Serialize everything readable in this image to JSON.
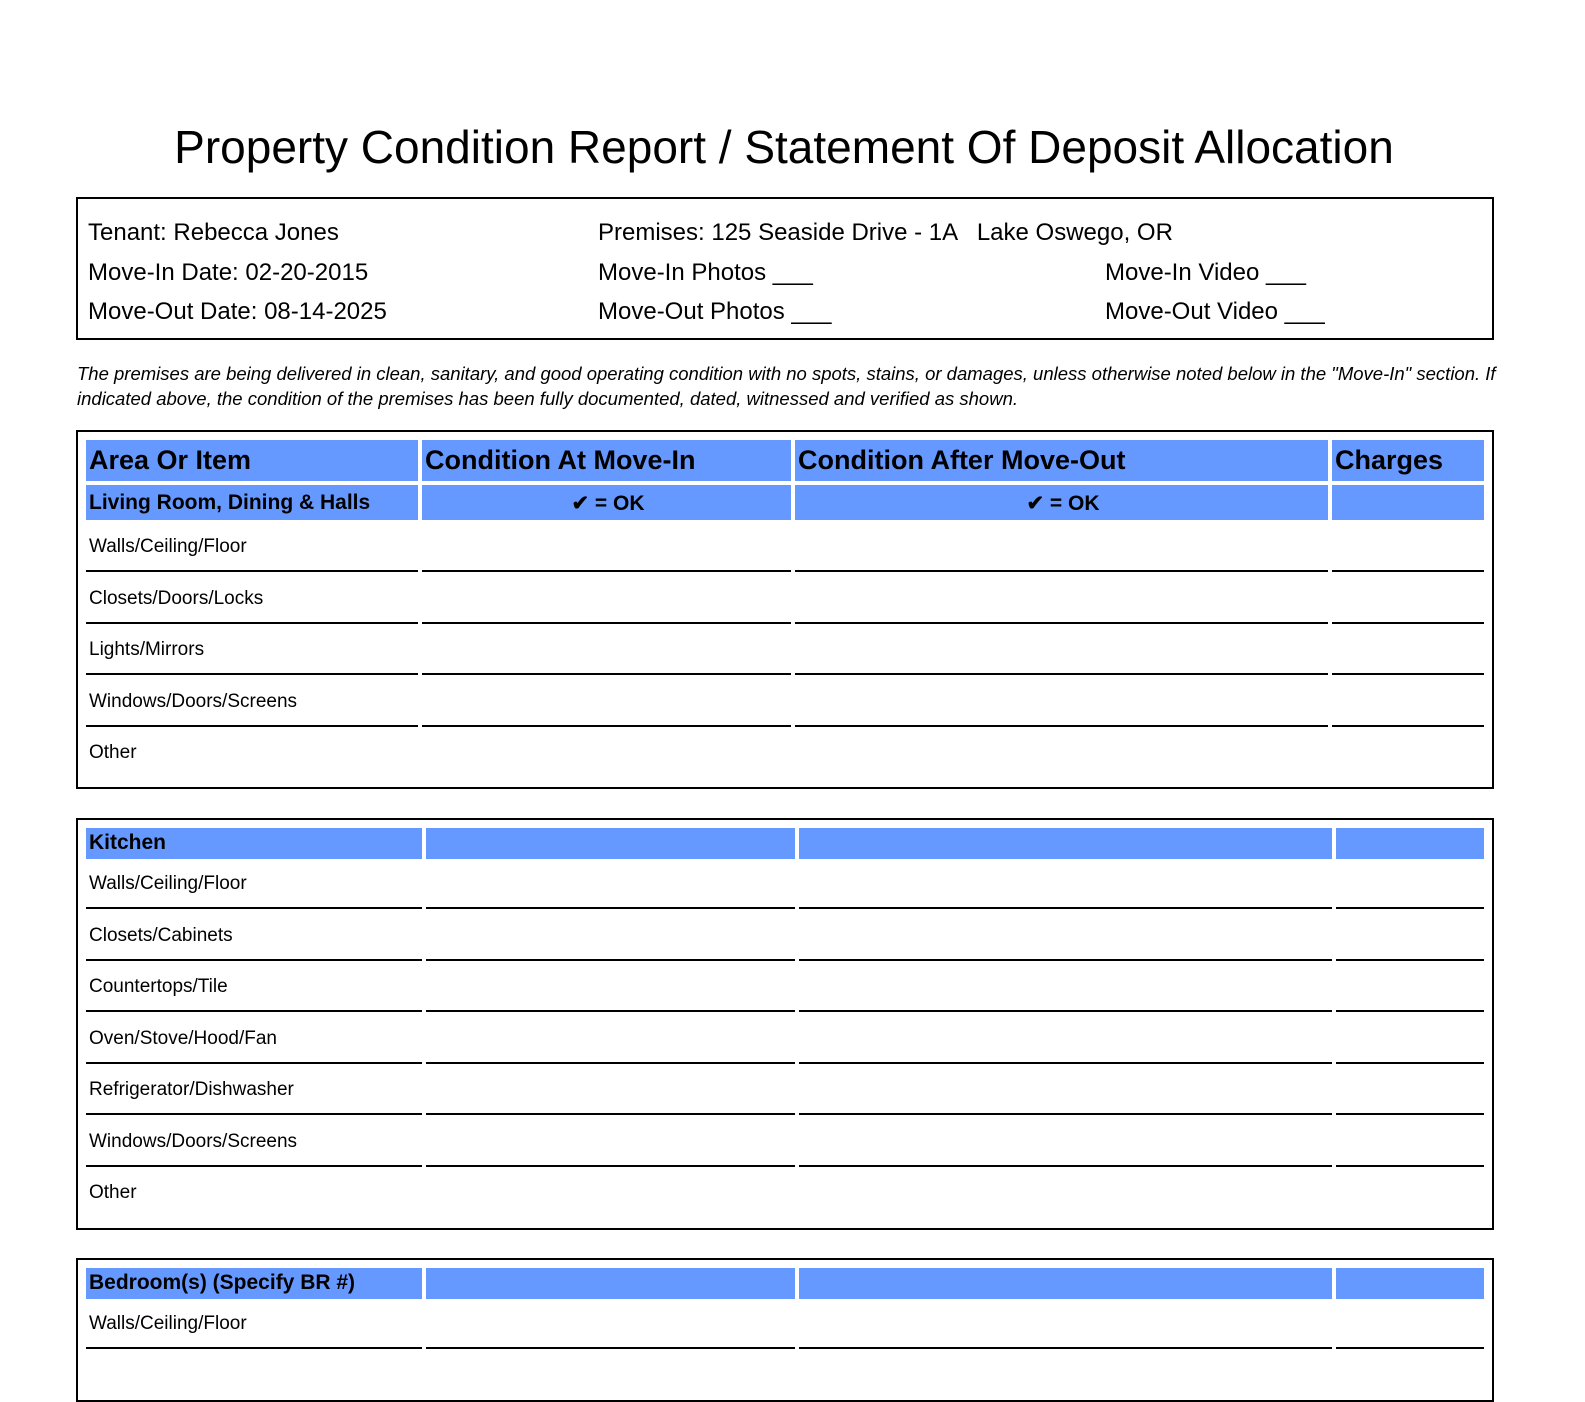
{
  "title": "Property Condition Report / Statement Of Deposit Allocation",
  "info": {
    "tenant": "Tenant: Rebecca Jones",
    "move_in_date": "Move-In Date: 02-20-2015",
    "move_out_date": "Move-Out Date: 08-14-2025",
    "premises": "Premises: 125 Seaside Drive - 1A   Lake Oswego, OR",
    "move_in_photos": "Move-In Photos ___",
    "move_out_photos": "Move-Out Photos ___",
    "move_in_video": "Move-In Video ___",
    "move_out_video": "Move-Out Video ___"
  },
  "note": "The premises are being delivered in clean, sanitary, and good operating condition with no spots, stains, or damages, unless otherwise noted below in the \"Move-In\" section. If indicated above, the condition of the premises has been fully documented, dated, witnessed and verified as shown.",
  "columns": [
    "Area Or Item",
    "Condition At Move-In",
    "Condition After Move-Out",
    "Charges"
  ],
  "ok_legend": "✔ = OK",
  "sections": [
    {
      "name": "Living Room, Dining & Halls",
      "items": [
        "Walls/Ceiling/Floor",
        "Closets/Doors/Locks",
        "Lights/Mirrors",
        "Windows/Doors/Screens",
        "Other"
      ]
    },
    {
      "name": "Kitchen",
      "items": [
        "Walls/Ceiling/Floor",
        "Closets/Cabinets",
        "Countertops/Tile",
        "Oven/Stove/Hood/Fan",
        "Refrigerator/Dishwasher",
        "Windows/Doors/Screens",
        "Other"
      ]
    },
    {
      "name": "Bedroom(s) (Specify BR #)",
      "items": [
        "Walls/Ceiling/Floor"
      ]
    }
  ]
}
